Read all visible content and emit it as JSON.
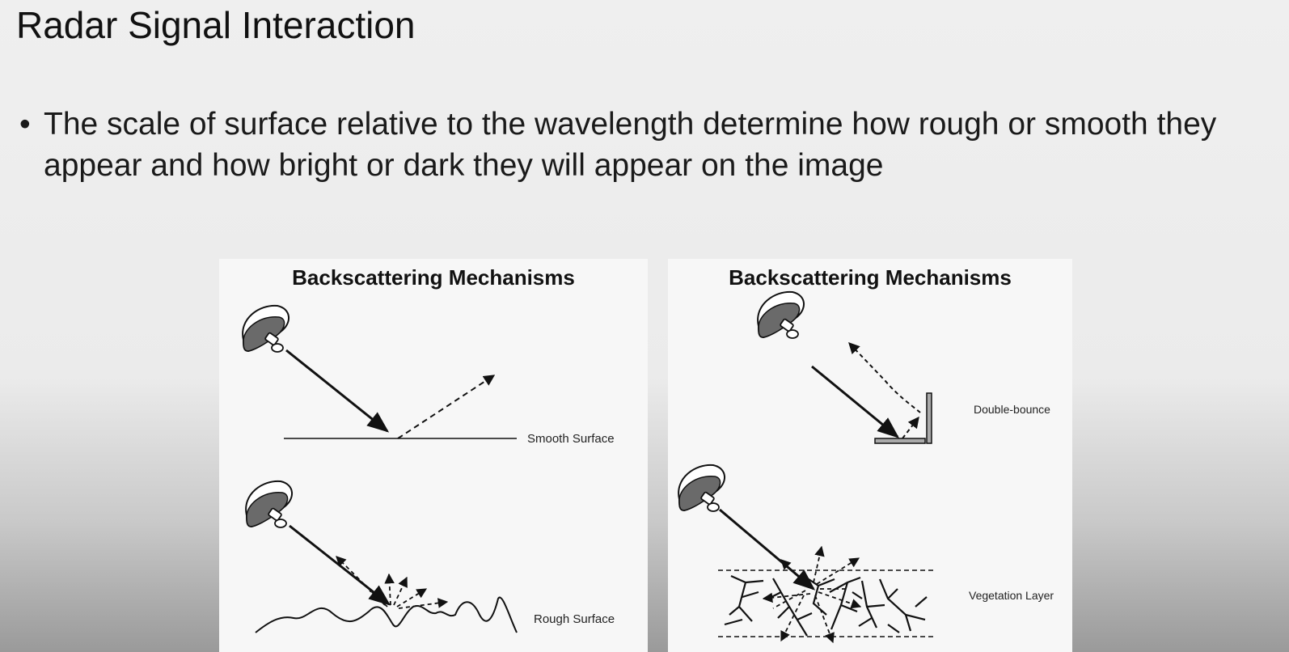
{
  "slide": {
    "title": "Radar Signal Interaction",
    "bullet_marker": "•",
    "bullet_text": "The scale of surface relative to the wavelength determine how rough or smooth they appear and how bright or dark they will appear on the image"
  },
  "panels": [
    {
      "title": "Backscattering Mechanisms",
      "labels": {
        "top": "Smooth Surface",
        "bottom": "Rough Surface"
      }
    },
    {
      "title": "Backscattering Mechanisms",
      "labels": {
        "top": "Double-bounce",
        "bottom": "Vegetation Layer"
      }
    }
  ],
  "icons": [
    "radar-antenna-icon"
  ],
  "colors": {
    "background": "#ececec",
    "panel": "#f7f7f7",
    "ink": "#111111"
  }
}
